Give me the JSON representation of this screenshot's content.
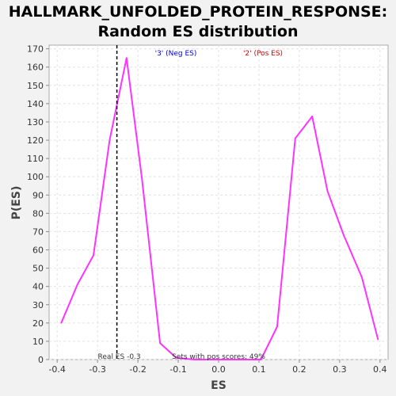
{
  "chart_data": {
    "type": "line",
    "title": "HALLMARK_UNFOLDED_PROTEIN_RESPONSE:",
    "subtitle": "Random ES distribution",
    "xlabel": "ES",
    "ylabel": "P(ES)",
    "xlim": [
      -0.42,
      0.42
    ],
    "ylim": [
      0,
      172
    ],
    "xticks": [
      -0.4,
      -0.3,
      -0.2,
      -0.1,
      0.0,
      0.1,
      0.2,
      0.3,
      0.4
    ],
    "xtick_labels": [
      "-0.4",
      "-0.3",
      "-0.2",
      "-0.1",
      "0.0",
      "0.1",
      "0.2",
      "0.3",
      "0.4"
    ],
    "yticks": [
      0,
      10,
      20,
      30,
      40,
      50,
      60,
      70,
      80,
      90,
      100,
      110,
      120,
      130,
      140,
      150,
      160,
      170
    ],
    "ytick_labels": [
      "0",
      "10",
      "20",
      "30",
      "40",
      "50",
      "60",
      "70",
      "80",
      "90",
      "100",
      "110",
      "120",
      "130",
      "140",
      "150",
      "160",
      "170"
    ],
    "grid": true,
    "series": [
      {
        "color": "#ff33ff",
        "points": [
          [
            -0.39,
            20
          ],
          [
            -0.35,
            41
          ],
          [
            -0.31,
            57
          ],
          [
            -0.27,
            120
          ],
          [
            -0.228,
            165
          ],
          [
            -0.19,
            99
          ],
          [
            -0.145,
            9
          ],
          [
            -0.105,
            1
          ],
          [
            -0.06,
            0
          ],
          [
            0.0,
            0
          ],
          [
            0.06,
            0
          ],
          [
            0.105,
            0
          ],
          [
            0.145,
            18
          ],
          [
            0.19,
            121
          ],
          [
            0.232,
            133
          ],
          [
            0.27,
            92
          ],
          [
            0.31,
            68
          ],
          [
            0.355,
            45
          ],
          [
            0.395,
            11
          ]
        ]
      }
    ],
    "real_es": {
      "value": -0.252,
      "label": "Real ES -0.3"
    },
    "annotations": {
      "neg_label": "'3' (Neg ES)",
      "pos_label": "'2' (Pos ES)",
      "pos_scores": "Sets with pos scores: 49%",
      "neg_color": "#0000dd",
      "pos_color": "#dd0000",
      "text_color": "#333333"
    }
  }
}
